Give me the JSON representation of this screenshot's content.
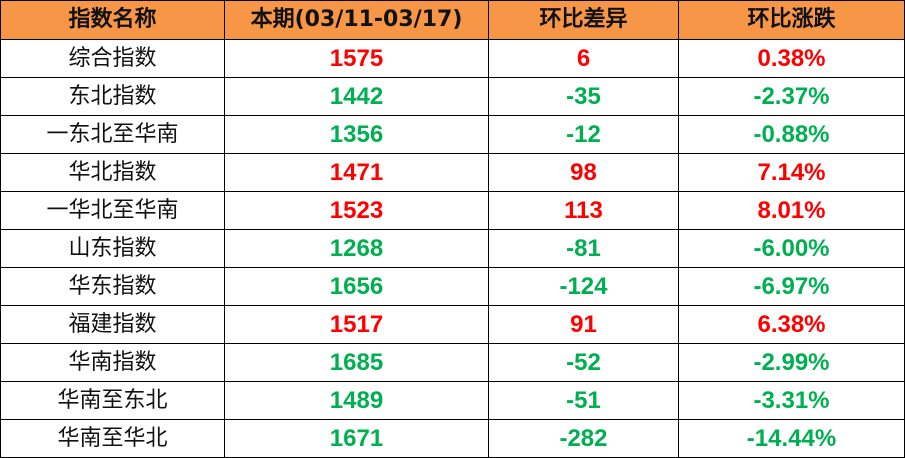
{
  "colors": {
    "header_bg": "#f79646",
    "up": "#ff0000",
    "down": "#00b050"
  },
  "headers": [
    "指数名称",
    "本期(03/11-03/17)",
    "环比差异",
    "环比涨跌"
  ],
  "rows": [
    {
      "name": "综合指数",
      "current": "1575",
      "diff": "6",
      "pct": "0.38%",
      "trend": "up"
    },
    {
      "name": "东北指数",
      "current": "1442",
      "diff": "-35",
      "pct": "-2.37%",
      "trend": "down"
    },
    {
      "name": "一东北至华南",
      "current": "1356",
      "diff": "-12",
      "pct": "-0.88%",
      "trend": "down"
    },
    {
      "name": "华北指数",
      "current": "1471",
      "diff": "98",
      "pct": "7.14%",
      "trend": "up"
    },
    {
      "name": "一华北至华南",
      "current": "1523",
      "diff": "113",
      "pct": "8.01%",
      "trend": "up"
    },
    {
      "name": "山东指数",
      "current": "1268",
      "diff": "-81",
      "pct": "-6.00%",
      "trend": "down"
    },
    {
      "name": "华东指数",
      "current": "1656",
      "diff": "-124",
      "pct": "-6.97%",
      "trend": "down"
    },
    {
      "name": "福建指数",
      "current": "1517",
      "diff": "91",
      "pct": "6.38%",
      "trend": "up"
    },
    {
      "name": "华南指数",
      "current": "1685",
      "diff": "-52",
      "pct": "-2.99%",
      "trend": "down"
    },
    {
      "name": "华南至东北",
      "current": "1489",
      "diff": "-51",
      "pct": "-3.31%",
      "trend": "down"
    },
    {
      "name": "华南至华北",
      "current": "1671",
      "diff": "-282",
      "pct": "-14.44%",
      "trend": "down"
    }
  ]
}
